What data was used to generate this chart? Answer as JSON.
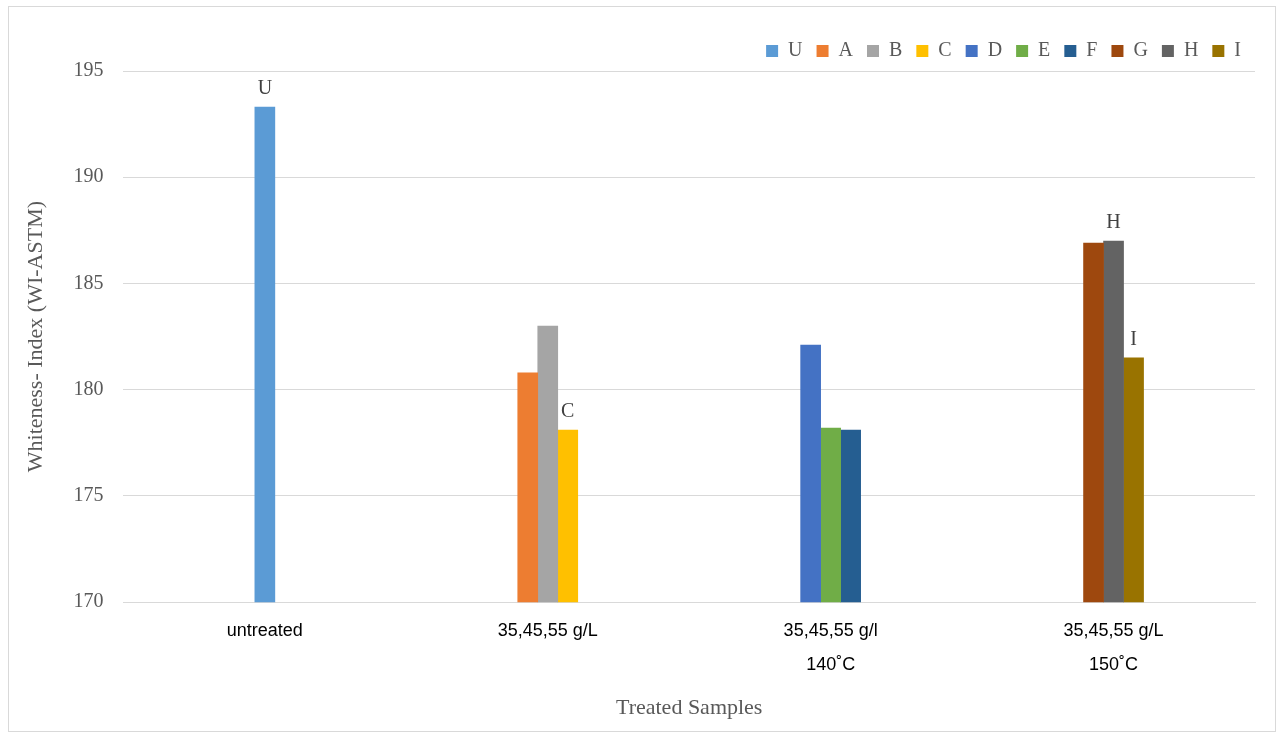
{
  "chart_data": {
    "type": "bar",
    "xlabel": "Treated Samples",
    "ylabel": "Whiteness- Index (WI-ASTM)",
    "categories": [
      "untreated",
      "35,45,55 g/L",
      "35,45,55 g/l\n140˚C",
      "35,45,55 g/L\n150˚C"
    ],
    "series": [
      {
        "name": "U",
        "color": "#5b9bd5",
        "values": [
          193.3,
          null,
          null,
          null
        ],
        "value_labels": [
          "U",
          null,
          null,
          null
        ]
      },
      {
        "name": "A",
        "color": "#ed7d31",
        "values": [
          null,
          180.8,
          null,
          null
        ]
      },
      {
        "name": "B",
        "color": "#a5a5a5",
        "values": [
          null,
          183.0,
          null,
          null
        ]
      },
      {
        "name": "C",
        "color": "#ffc000",
        "values": [
          null,
          178.1,
          null,
          null
        ],
        "value_labels": [
          null,
          "C",
          null,
          null
        ]
      },
      {
        "name": "D",
        "color": "#4472c4",
        "values": [
          null,
          null,
          182.1,
          null
        ]
      },
      {
        "name": "E",
        "color": "#70ad47",
        "values": [
          null,
          null,
          178.2,
          null
        ]
      },
      {
        "name": "F",
        "color": "#255e91",
        "values": [
          null,
          null,
          178.1,
          null
        ]
      },
      {
        "name": "G",
        "color": "#9e480e",
        "values": [
          null,
          null,
          null,
          186.9
        ]
      },
      {
        "name": "H",
        "color": "#636363",
        "values": [
          null,
          null,
          null,
          187.0
        ],
        "value_labels": [
          null,
          null,
          null,
          "H"
        ]
      },
      {
        "name": "I",
        "color": "#997300",
        "values": [
          null,
          null,
          null,
          181.5
        ],
        "value_labels": [
          null,
          null,
          null,
          "I"
        ]
      }
    ],
    "ylim": [
      170,
      195
    ],
    "yticks": [
      170,
      175,
      180,
      185,
      190,
      195
    ],
    "grid": "y",
    "legend": "top right"
  }
}
